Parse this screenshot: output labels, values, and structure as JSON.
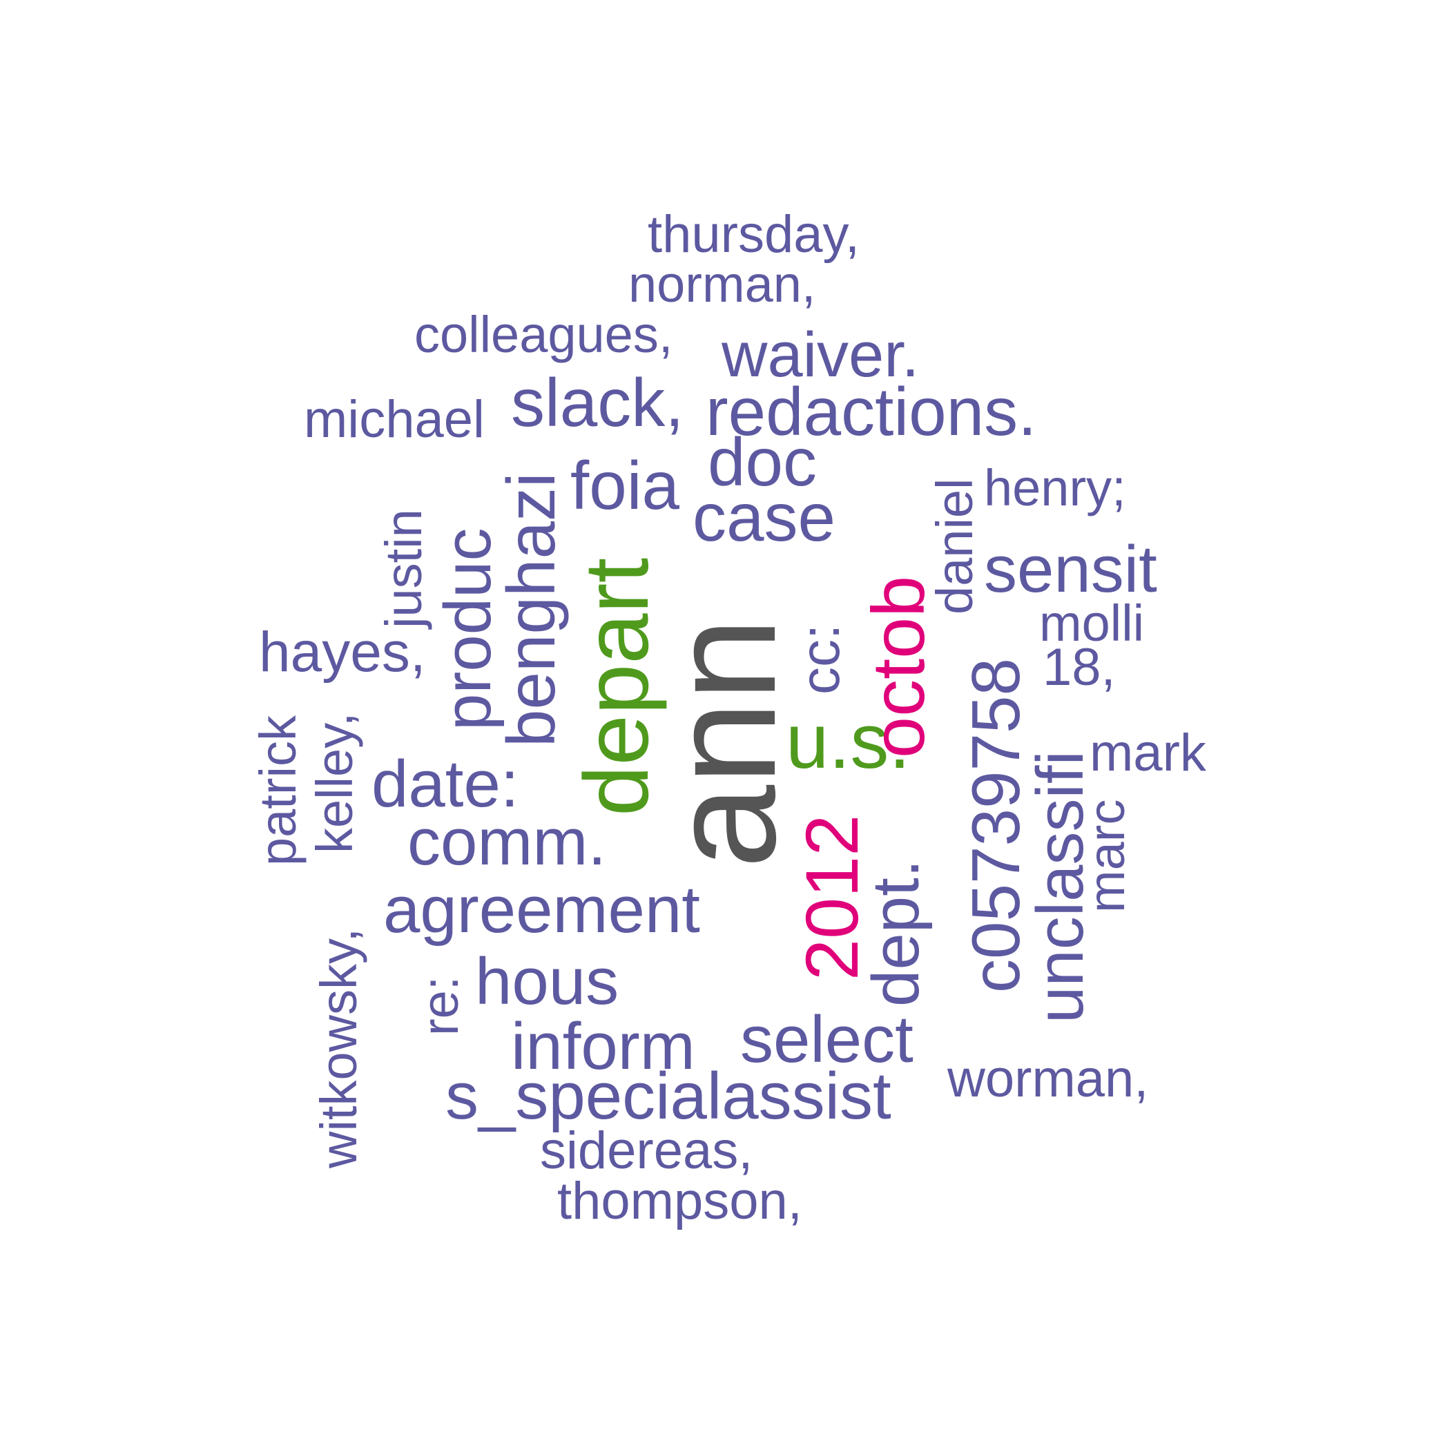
{
  "colors": {
    "purple": "#5d59a0",
    "green": "#4f9a1c",
    "magenta": "#e0007a",
    "gray": "#555555"
  },
  "words": [
    {
      "id": "w0",
      "text": "thursday,",
      "color": "purple"
    },
    {
      "id": "w1",
      "text": "norman,",
      "color": "purple"
    },
    {
      "id": "w2",
      "text": "colleagues,",
      "color": "purple"
    },
    {
      "id": "w3",
      "text": "waiver.",
      "color": "purple"
    },
    {
      "id": "w4",
      "text": "michael",
      "color": "purple"
    },
    {
      "id": "w5",
      "text": "slack,",
      "color": "purple"
    },
    {
      "id": "w6",
      "text": "redactions.",
      "color": "purple"
    },
    {
      "id": "w7",
      "text": "doc",
      "color": "purple"
    },
    {
      "id": "w8",
      "text": "foia",
      "color": "purple"
    },
    {
      "id": "w9",
      "text": "case",
      "color": "purple"
    },
    {
      "id": "w10",
      "text": "henry;",
      "color": "purple"
    },
    {
      "id": "w11",
      "text": "sensit",
      "color": "purple"
    },
    {
      "id": "w12",
      "text": "molli",
      "color": "purple"
    },
    {
      "id": "w13",
      "text": "18,",
      "color": "purple"
    },
    {
      "id": "w14",
      "text": "hayes,",
      "color": "purple"
    },
    {
      "id": "w15",
      "text": "mark",
      "color": "purple"
    },
    {
      "id": "w16",
      "text": "date:",
      "color": "purple"
    },
    {
      "id": "w17",
      "text": "comm.",
      "color": "purple"
    },
    {
      "id": "w18",
      "text": "agreement",
      "color": "purple"
    },
    {
      "id": "w19",
      "text": "hous",
      "color": "purple"
    },
    {
      "id": "w20",
      "text": "inform",
      "color": "purple"
    },
    {
      "id": "w21",
      "text": "select",
      "color": "purple"
    },
    {
      "id": "w22",
      "text": "worman,",
      "color": "purple"
    },
    {
      "id": "w23",
      "text": "s_specialassist",
      "color": "purple"
    },
    {
      "id": "w24",
      "text": "sidereas,",
      "color": "purple"
    },
    {
      "id": "w25",
      "text": "thompson,",
      "color": "purple"
    },
    {
      "id": "w26",
      "text": "u.s.",
      "color": "green"
    },
    {
      "id": "w27",
      "text": "justin",
      "color": "purple"
    },
    {
      "id": "w28",
      "text": "produc",
      "color": "purple"
    },
    {
      "id": "w29",
      "text": "benghazi",
      "color": "purple"
    },
    {
      "id": "w30",
      "text": "depart",
      "color": "green"
    },
    {
      "id": "w31",
      "text": "ann",
      "color": "gray"
    },
    {
      "id": "w32",
      "text": "cc:",
      "color": "purple"
    },
    {
      "id": "w33",
      "text": "octob",
      "color": "magenta"
    },
    {
      "id": "w34",
      "text": "daniel",
      "color": "purple"
    },
    {
      "id": "w35",
      "text": "c05739758",
      "color": "purple"
    },
    {
      "id": "w36",
      "text": "unclassifi",
      "color": "purple"
    },
    {
      "id": "w37",
      "text": "marc",
      "color": "purple"
    },
    {
      "id": "w38",
      "text": "patrick",
      "color": "purple"
    },
    {
      "id": "w39",
      "text": "kelley,",
      "color": "purple"
    },
    {
      "id": "w40",
      "text": "witkowsky,",
      "color": "purple"
    },
    {
      "id": "w41",
      "text": "re:",
      "color": "purple"
    },
    {
      "id": "w42",
      "text": "2012",
      "color": "magenta"
    },
    {
      "id": "w43",
      "text": "dept.",
      "color": "purple"
    }
  ]
}
